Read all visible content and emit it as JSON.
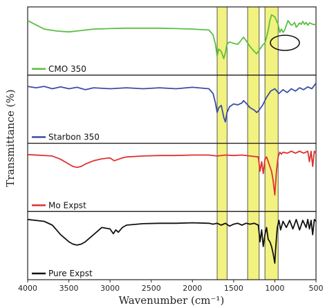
{
  "chart_data": {
    "type": "line",
    "xlabel": "Wavenumber (cm⁻¹)",
    "ylabel": "Transmittance (%)",
    "xlim": [
      4000,
      500
    ],
    "xticks": [
      "4000",
      "3500",
      "3000",
      "2500",
      "2000",
      "1500",
      "1000",
      "500"
    ],
    "grid": false,
    "highlight_bands": [
      {
        "from": 1700,
        "to": 1580,
        "color": "#eeee55"
      },
      {
        "from": 1330,
        "to": 1190,
        "color": "#eeee55"
      },
      {
        "from": 1120,
        "to": 960,
        "color": "#eeee55"
      }
    ],
    "series": [
      {
        "name": "CMO 350",
        "color": "#5bbf3f",
        "x": [
          4000,
          3800,
          3650,
          3500,
          3400,
          3300,
          3200,
          3000,
          2800,
          2600,
          2400,
          2200,
          2000,
          1800,
          1750,
          1720,
          1700,
          1680,
          1650,
          1620,
          1600,
          1580,
          1550,
          1500,
          1450,
          1420,
          1380,
          1350,
          1300,
          1250,
          1220,
          1200,
          1150,
          1120,
          1100,
          1080,
          1060,
          1040,
          1020,
          1000,
          980,
          960,
          940,
          920,
          900,
          880,
          860,
          840,
          820,
          800,
          780,
          760,
          740,
          720,
          700,
          680,
          660,
          640,
          620,
          600,
          580,
          560,
          540,
          520,
          500
        ],
        "y": [
          0.8,
          0.62,
          0.58,
          0.56,
          0.58,
          0.6,
          0.62,
          0.63,
          0.64,
          0.64,
          0.64,
          0.63,
          0.62,
          0.6,
          0.5,
          0.3,
          0.05,
          0.2,
          0.15,
          0.0,
          0.12,
          0.3,
          0.35,
          0.32,
          0.3,
          0.36,
          0.45,
          0.38,
          0.25,
          0.15,
          0.1,
          0.15,
          0.28,
          0.33,
          0.45,
          0.6,
          0.8,
          0.92,
          0.9,
          0.88,
          0.8,
          0.72,
          0.55,
          0.62,
          0.55,
          0.6,
          0.7,
          0.8,
          0.75,
          0.7,
          0.72,
          0.76,
          0.66,
          0.7,
          0.75,
          0.72,
          0.78,
          0.72,
          0.76,
          0.7,
          0.75,
          0.74,
          0.72,
          0.72,
          0.7
        ]
      },
      {
        "name": "Starbon 350",
        "color": "#3a4ca8",
        "x": [
          4000,
          3900,
          3800,
          3700,
          3600,
          3500,
          3400,
          3300,
          3200,
          3000,
          2800,
          2600,
          2400,
          2200,
          2000,
          1800,
          1750,
          1720,
          1700,
          1680,
          1650,
          1620,
          1600,
          1580,
          1550,
          1500,
          1450,
          1400,
          1380,
          1350,
          1300,
          1250,
          1220,
          1200,
          1150,
          1100,
          1050,
          1000,
          950,
          900,
          850,
          800,
          750,
          700,
          650,
          600,
          550,
          500
        ],
        "y": [
          0.85,
          0.82,
          0.85,
          0.8,
          0.84,
          0.8,
          0.83,
          0.78,
          0.82,
          0.8,
          0.82,
          0.8,
          0.82,
          0.8,
          0.83,
          0.8,
          0.7,
          0.5,
          0.3,
          0.4,
          0.45,
          0.2,
          0.1,
          0.3,
          0.42,
          0.48,
          0.46,
          0.5,
          0.55,
          0.5,
          0.4,
          0.35,
          0.3,
          0.33,
          0.45,
          0.62,
          0.75,
          0.8,
          0.7,
          0.78,
          0.72,
          0.8,
          0.75,
          0.82,
          0.78,
          0.84,
          0.8,
          0.92
        ]
      },
      {
        "name": "Mo Expst",
        "color": "#e03030",
        "x": [
          4000,
          3700,
          3600,
          3500,
          3450,
          3400,
          3350,
          3300,
          3200,
          3100,
          3000,
          2950,
          2900,
          2850,
          2800,
          2600,
          2400,
          2200,
          2000,
          1800,
          1700,
          1600,
          1500,
          1400,
          1300,
          1200,
          1180,
          1160,
          1140,
          1120,
          1100,
          1080,
          1060,
          1040,
          1020,
          1000,
          980,
          960,
          940,
          920,
          900,
          850,
          800,
          750,
          700,
          650,
          600,
          580,
          560,
          540,
          520,
          500
        ],
        "y": [
          0.85,
          0.82,
          0.75,
          0.65,
          0.6,
          0.58,
          0.6,
          0.65,
          0.72,
          0.76,
          0.78,
          0.72,
          0.75,
          0.78,
          0.8,
          0.82,
          0.83,
          0.83,
          0.84,
          0.84,
          0.82,
          0.84,
          0.83,
          0.84,
          0.82,
          0.8,
          0.5,
          0.7,
          0.45,
          0.75,
          0.8,
          0.7,
          0.6,
          0.5,
          0.3,
          0.0,
          0.5,
          0.8,
          0.9,
          0.86,
          0.9,
          0.88,
          0.92,
          0.88,
          0.92,
          0.88,
          0.92,
          0.7,
          0.92,
          0.6,
          0.92,
          0.88
        ]
      },
      {
        "name": "Pure Expst",
        "color": "#111111",
        "x": [
          4000,
          3800,
          3700,
          3600,
          3500,
          3450,
          3400,
          3350,
          3300,
          3200,
          3100,
          3000,
          2960,
          2930,
          2900,
          2850,
          2800,
          2600,
          2400,
          2200,
          2000,
          1800,
          1750,
          1700,
          1650,
          1600,
          1550,
          1500,
          1450,
          1400,
          1350,
          1300,
          1250,
          1200,
          1180,
          1160,
          1140,
          1120,
          1100,
          1080,
          1060,
          1040,
          1020,
          1000,
          990,
          970,
          950,
          930,
          900,
          860,
          820,
          780,
          740,
          700,
          660,
          620,
          600,
          580,
          560,
          540,
          520,
          500
        ],
        "y": [
          0.92,
          0.88,
          0.8,
          0.6,
          0.45,
          0.4,
          0.38,
          0.4,
          0.45,
          0.6,
          0.75,
          0.72,
          0.62,
          0.7,
          0.65,
          0.75,
          0.8,
          0.83,
          0.84,
          0.84,
          0.85,
          0.84,
          0.82,
          0.84,
          0.8,
          0.84,
          0.78,
          0.82,
          0.84,
          0.8,
          0.84,
          0.82,
          0.84,
          0.8,
          0.45,
          0.7,
          0.35,
          0.6,
          0.75,
          0.5,
          0.45,
          0.35,
          0.2,
          0.0,
          0.3,
          0.75,
          0.9,
          0.7,
          0.88,
          0.75,
          0.9,
          0.72,
          0.92,
          0.7,
          0.9,
          0.75,
          0.92,
          0.72,
          0.9,
          0.6,
          0.92,
          0.88
        ]
      }
    ]
  }
}
